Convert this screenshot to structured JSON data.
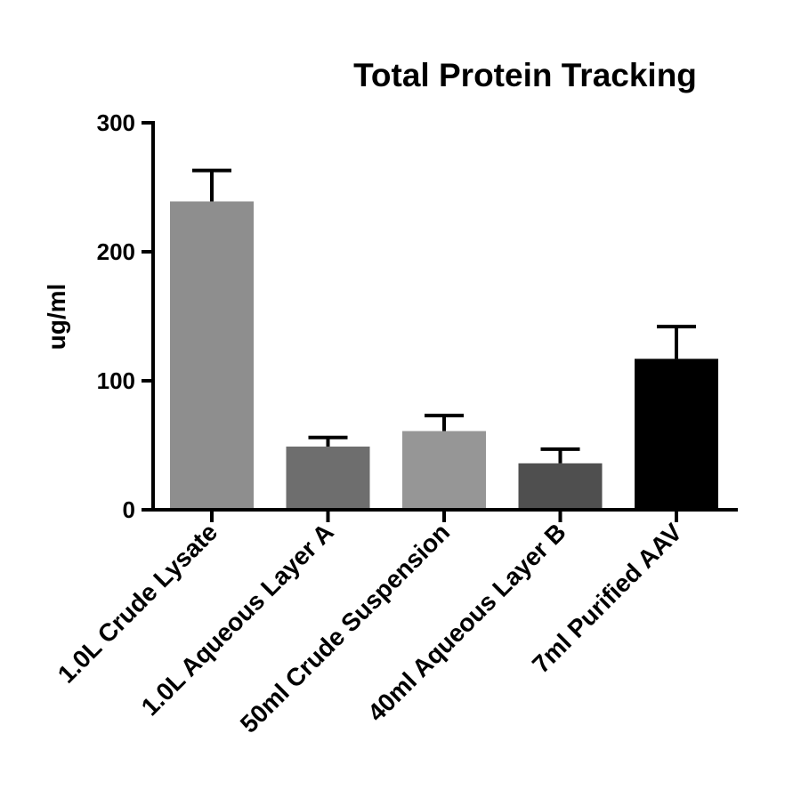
{
  "chart_data": {
    "type": "bar",
    "title": "Total Protein Tracking",
    "xlabel": "",
    "ylabel": "ug/ml",
    "ylim": [
      0,
      300
    ],
    "yticks": [
      0,
      100,
      200,
      300
    ],
    "ytick_labels": [
      "0",
      "100",
      "200",
      "300"
    ],
    "grid": false,
    "categories": [
      "1.0L Crude Lysate",
      "1.0L Aqueous Layer A",
      "50ml Crude Suspension",
      "40ml Aqueous Layer B",
      "7ml Purified AAV"
    ],
    "values": [
      239,
      49,
      61,
      36,
      117
    ],
    "error_upper": [
      24,
      7,
      12,
      11,
      25
    ],
    "colors": [
      "#8e8e8e",
      "#6e6e6e",
      "#969696",
      "#4f4f4f",
      "#000000"
    ]
  }
}
